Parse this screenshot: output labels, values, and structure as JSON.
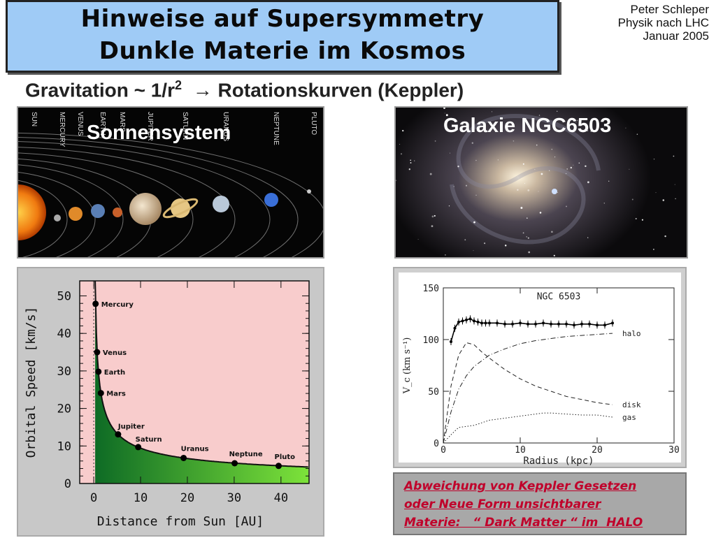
{
  "header": {
    "title_line1": "Hinweise auf Supersymmetry",
    "title_line2": "Dunkle Materie im Kosmos",
    "author_name": "Peter Schleper",
    "author_course": "Physik nach LHC",
    "author_date": "Januar 2005"
  },
  "subtitle": {
    "prefix": "Gravitation ~ 1/r",
    "exponent": "2",
    "arrow": "→",
    "suffix": "Rotationskurven (Keppler)"
  },
  "solar_photo": {
    "label": "Sonnensystem",
    "planet_names": [
      "SUN",
      "MERCURY",
      "VENUS",
      "EARTH",
      "MARS",
      "JUPITER",
      "SATURN",
      "URANUS",
      "NEPTUNE",
      "PLUTO"
    ]
  },
  "galaxy_photo": {
    "label": "Galaxie NGC6503"
  },
  "chart_data": [
    {
      "type": "scatter",
      "xlabel": "Distance from Sun [AU]",
      "ylabel": "Orbital Speed [km/s]",
      "xlim": [
        -3,
        46
      ],
      "ylim": [
        0,
        54
      ],
      "xticks": [
        "0",
        "10",
        "20",
        "30",
        "40"
      ],
      "yticks": [
        "0",
        "10",
        "20",
        "30",
        "40",
        "50"
      ],
      "points": [
        {
          "name": "Mercury",
          "x": 0.39,
          "y": 47.9
        },
        {
          "name": "Venus",
          "x": 0.72,
          "y": 35.0
        },
        {
          "name": "Earth",
          "x": 1.0,
          "y": 29.8
        },
        {
          "name": "Mars",
          "x": 1.52,
          "y": 24.1
        },
        {
          "name": "Jupiter",
          "x": 5.2,
          "y": 13.1
        },
        {
          "name": "Saturn",
          "x": 9.5,
          "y": 9.7
        },
        {
          "name": "Uranus",
          "x": 19.2,
          "y": 6.8
        },
        {
          "name": "Neptune",
          "x": 30.1,
          "y": 5.4
        },
        {
          "name": "Pluto",
          "x": 39.5,
          "y": 4.7
        }
      ],
      "colors": {
        "plot_bg": "#f8cccc",
        "fill_dark": "#0e6b25",
        "fill_light": "#7de33a",
        "panel_bg": "#c8c8c8"
      }
    },
    {
      "type": "line",
      "title": "NGC 6503",
      "xlabel": "Radius (kpc)",
      "ylabel": "V_c (km s⁻¹)",
      "xlim": [
        0,
        30
      ],
      "ylim": [
        0,
        150
      ],
      "xticks": [
        "0",
        "10",
        "20",
        "30"
      ],
      "yticks": [
        "0",
        "50",
        "100",
        "150"
      ],
      "observed": {
        "x": [
          1.0,
          1.5,
          2.0,
          2.5,
          3.0,
          3.5,
          4.0,
          4.5,
          5.0,
          5.5,
          6.0,
          7.0,
          8.0,
          9.0,
          10.0,
          11.0,
          12.0,
          13.0,
          14.0,
          15.0,
          16.0,
          17.0,
          18.0,
          19.0,
          20.0,
          21.0,
          22.0
        ],
        "y": [
          98,
          111,
          117,
          118,
          119,
          120,
          118,
          117,
          116,
          116,
          116,
          116,
          115,
          115,
          116,
          115,
          115,
          116,
          115,
          115,
          115,
          114,
          115,
          115,
          114,
          114,
          116
        ]
      },
      "components": [
        {
          "name": "halo",
          "x": [
            0,
            1,
            2,
            3,
            4,
            6,
            8,
            10,
            12,
            14,
            16,
            18,
            20,
            22
          ],
          "y": [
            0,
            30,
            52,
            65,
            74,
            85,
            91,
            96,
            99,
            101,
            103,
            104,
            105,
            106
          ]
        },
        {
          "name": "disk",
          "x": [
            0,
            1,
            2,
            3,
            4,
            5,
            6,
            8,
            10,
            12,
            14,
            16,
            18,
            20,
            22
          ],
          "y": [
            0,
            55,
            85,
            97,
            95,
            88,
            82,
            71,
            62,
            55,
            50,
            45,
            42,
            39,
            37
          ]
        },
        {
          "name": "gas",
          "x": [
            0,
            1,
            2,
            4,
            6,
            8,
            10,
            12,
            13,
            14,
            16,
            18,
            20,
            22
          ],
          "y": [
            0,
            8,
            15,
            17,
            22,
            24,
            26,
            28,
            29,
            29,
            28,
            27,
            27,
            25
          ]
        }
      ]
    }
  ],
  "note": {
    "line1": "Abweichung von Keppler Gesetzen",
    "line2": "oder Neue Form unsichtbarer",
    "line3": "Materie:   “ Dark Matter “ im  HALO"
  }
}
